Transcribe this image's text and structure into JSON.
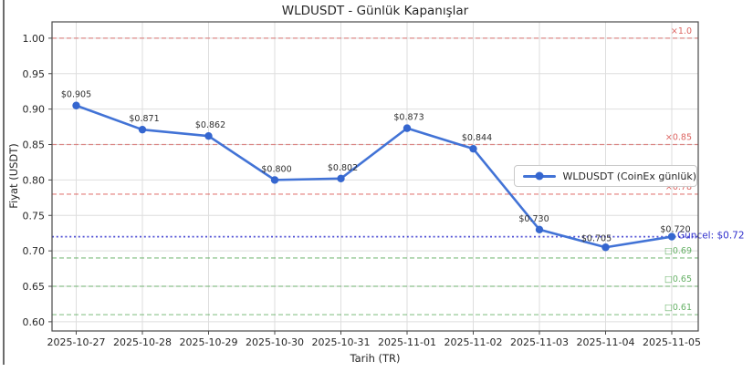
{
  "chart_data": {
    "type": "line",
    "title": "WLDUSDT - Günlük Kapanışlar",
    "xlabel": "Tarih (TR)",
    "ylabel": "Fiyat (USDT)",
    "categories": [
      "2025-10-27",
      "2025-10-28",
      "2025-10-29",
      "2025-10-30",
      "2025-10-31",
      "2025-11-01",
      "2025-11-02",
      "2025-11-03",
      "2025-11-04",
      "2025-11-05"
    ],
    "series": [
      {
        "name": "WLDUSDT (CoinEx günlük)",
        "values": [
          0.905,
          0.871,
          0.862,
          0.8,
          0.802,
          0.873,
          0.844,
          0.73,
          0.705,
          0.72
        ],
        "color": "#4273d6",
        "marker_color": "#3566cf"
      }
    ],
    "point_labels": [
      "$0.905",
      "$0.871",
      "$0.862",
      "$0.800",
      "$0.802",
      "$0.873",
      "$0.844",
      "$0.730",
      "$0.705",
      "$0.720"
    ],
    "y_tick_labels": [
      "0.60",
      "0.65",
      "0.70",
      "0.75",
      "0.80",
      "0.85",
      "0.90",
      "0.95",
      "1.00"
    ],
    "ylim": [
      0.587,
      1.023
    ],
    "grid": true,
    "hlines": [
      {
        "value": 1.0,
        "label": "×1.0",
        "color": "#d9534f"
      },
      {
        "value": 0.85,
        "label": "×0.85",
        "color": "#d9534f"
      },
      {
        "value": 0.78,
        "label": "×0.78",
        "color": "#d9534f"
      },
      {
        "value": 0.69,
        "label": "□0.69",
        "color": "#55a855"
      },
      {
        "value": 0.65,
        "label": "□0.65",
        "color": "#55a855"
      },
      {
        "value": 0.61,
        "label": "□0.61",
        "color": "#55a855"
      }
    ],
    "current_line": {
      "value": 0.72,
      "label": "Güncel: $0.72",
      "color": "#3232cd"
    },
    "legend": {
      "label": "WLDUSDT (CoinEx günlük)",
      "position": "center right"
    },
    "colors": {
      "grid": "#dedede",
      "spine": "#4a4a4a",
      "tick_text": "#262626",
      "point_label": "#303030"
    }
  }
}
